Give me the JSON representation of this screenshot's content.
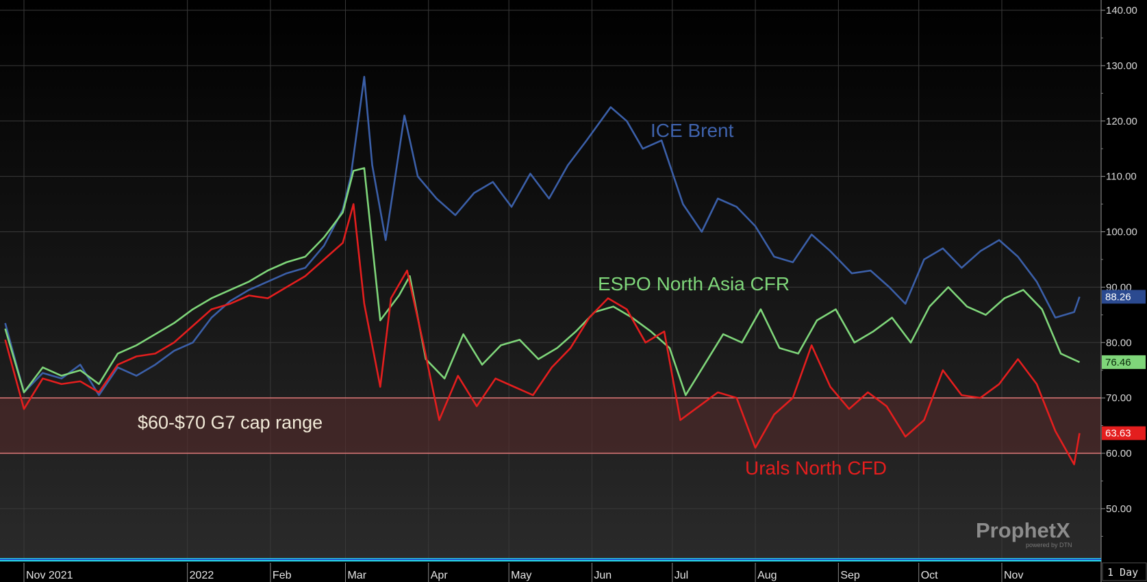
{
  "chart_data": {
    "type": "line",
    "y_range": [
      40,
      142
    ],
    "y_ticks": [
      50,
      60,
      70,
      80,
      90,
      100,
      110,
      120,
      130,
      140
    ],
    "y_tick_labels": [
      "50.00",
      "60.00",
      "70.00",
      "80.00",
      "90.00",
      "100.00",
      "110.00",
      "120.00",
      "130.00",
      "140.00"
    ],
    "x_range": [
      "2021-10-25",
      "2022-11-30"
    ],
    "x_ticks": [
      {
        "date": "2021-11-01",
        "label": "Nov 2021"
      },
      {
        "date": "2022-01-01",
        "label": "2022"
      },
      {
        "date": "2022-02-01",
        "label": "Feb"
      },
      {
        "date": "2022-03-01",
        "label": "Mar"
      },
      {
        "date": "2022-04-01",
        "label": "Apr"
      },
      {
        "date": "2022-05-01",
        "label": "May"
      },
      {
        "date": "2022-06-01",
        "label": "Jun"
      },
      {
        "date": "2022-07-01",
        "label": "Jul"
      },
      {
        "date": "2022-08-01",
        "label": "Aug"
      },
      {
        "date": "2022-09-01",
        "label": "Sep"
      },
      {
        "date": "2022-10-01",
        "label": "Oct"
      },
      {
        "date": "2022-11-01",
        "label": "Nov"
      }
    ],
    "band": {
      "low": 60,
      "high": 70,
      "label": "$60-$70 G7 cap range"
    },
    "period_label": "1 Day",
    "grid": true,
    "series": [
      {
        "name": "ICE Brent",
        "color": "#3b5fa8",
        "last_value": "88.26",
        "x": [
          "2021-10-25",
          "2021-11-01",
          "2021-11-08",
          "2021-11-15",
          "2021-11-22",
          "2021-11-29",
          "2021-12-06",
          "2021-12-13",
          "2021-12-20",
          "2021-12-27",
          "2022-01-03",
          "2022-01-10",
          "2022-01-17",
          "2022-01-24",
          "2022-01-31",
          "2022-02-07",
          "2022-02-14",
          "2022-02-21",
          "2022-02-28",
          "2022-03-03",
          "2022-03-08",
          "2022-03-11",
          "2022-03-16",
          "2022-03-23",
          "2022-03-28",
          "2022-04-04",
          "2022-04-11",
          "2022-04-18",
          "2022-04-25",
          "2022-05-02",
          "2022-05-09",
          "2022-05-16",
          "2022-05-23",
          "2022-05-30",
          "2022-06-08",
          "2022-06-14",
          "2022-06-20",
          "2022-06-27",
          "2022-07-05",
          "2022-07-12",
          "2022-07-18",
          "2022-07-25",
          "2022-08-01",
          "2022-08-08",
          "2022-08-15",
          "2022-08-22",
          "2022-08-29",
          "2022-09-06",
          "2022-09-13",
          "2022-09-20",
          "2022-09-26",
          "2022-10-03",
          "2022-10-10",
          "2022-10-17",
          "2022-10-24",
          "2022-10-31",
          "2022-11-07",
          "2022-11-14",
          "2022-11-21",
          "2022-11-28",
          "2022-11-30"
        ],
        "y": [
          83.5,
          71.0,
          74.5,
          73.5,
          76.0,
          70.5,
          75.5,
          74.0,
          76.0,
          78.5,
          80.0,
          84.5,
          87.5,
          89.5,
          91.0,
          92.5,
          93.5,
          97.5,
          104.0,
          110.0,
          128.0,
          112.0,
          98.5,
          121.0,
          110.0,
          106.0,
          103.0,
          107.0,
          109.0,
          104.5,
          110.5,
          106.0,
          112.0,
          116.5,
          122.5,
          120.0,
          115.0,
          116.5,
          105.0,
          100.0,
          106.0,
          104.5,
          101.0,
          95.5,
          94.5,
          99.5,
          96.5,
          92.5,
          93.0,
          90.0,
          87.0,
          95.0,
          97.0,
          93.5,
          96.5,
          98.5,
          95.5,
          91.0,
          84.5,
          85.5,
          88.26
        ]
      },
      {
        "name": "ESPO North Asia CFR",
        "color": "#7fd67a",
        "last_value": "76.46",
        "x": [
          "2021-10-25",
          "2021-11-01",
          "2021-11-08",
          "2021-11-15",
          "2021-11-22",
          "2021-11-29",
          "2021-12-06",
          "2021-12-13",
          "2021-12-20",
          "2021-12-27",
          "2022-01-03",
          "2022-01-10",
          "2022-01-17",
          "2022-01-24",
          "2022-01-31",
          "2022-02-07",
          "2022-02-14",
          "2022-02-21",
          "2022-02-28",
          "2022-03-04",
          "2022-03-08",
          "2022-03-14",
          "2022-03-21",
          "2022-03-25",
          "2022-03-31",
          "2022-04-07",
          "2022-04-14",
          "2022-04-21",
          "2022-04-28",
          "2022-05-05",
          "2022-05-12",
          "2022-05-19",
          "2022-05-26",
          "2022-06-02",
          "2022-06-09",
          "2022-06-16",
          "2022-06-23",
          "2022-06-30",
          "2022-07-06",
          "2022-07-13",
          "2022-07-20",
          "2022-07-27",
          "2022-08-03",
          "2022-08-10",
          "2022-08-17",
          "2022-08-24",
          "2022-08-31",
          "2022-09-07",
          "2022-09-14",
          "2022-09-21",
          "2022-09-28",
          "2022-10-05",
          "2022-10-12",
          "2022-10-19",
          "2022-10-26",
          "2022-11-02",
          "2022-11-09",
          "2022-11-16",
          "2022-11-23",
          "2022-11-30"
        ],
        "y": [
          82.5,
          71.0,
          75.5,
          74.0,
          75.0,
          72.5,
          78.0,
          79.5,
          81.5,
          83.5,
          86.0,
          88.0,
          89.5,
          91.0,
          93.0,
          94.5,
          95.5,
          99.0,
          103.5,
          111.0,
          111.5,
          84.0,
          88.5,
          92.0,
          77.0,
          73.5,
          81.5,
          76.0,
          79.5,
          80.5,
          77.0,
          79.0,
          82.0,
          85.5,
          86.5,
          84.5,
          82.0,
          79.0,
          70.5,
          76.0,
          81.5,
          80.0,
          86.0,
          79.0,
          78.0,
          84.0,
          86.0,
          80.0,
          82.0,
          84.5,
          80.0,
          86.5,
          90.0,
          86.5,
          85.0,
          88.0,
          89.5,
          86.0,
          78.0,
          76.46
        ]
      },
      {
        "name": "Urals North CFD",
        "color": "#e41e1e",
        "last_value": "63.63",
        "x": [
          "2021-10-25",
          "2021-11-01",
          "2021-11-08",
          "2021-11-15",
          "2021-11-22",
          "2021-11-29",
          "2021-12-06",
          "2021-12-13",
          "2021-12-20",
          "2021-12-27",
          "2022-01-03",
          "2022-01-10",
          "2022-01-17",
          "2022-01-24",
          "2022-01-31",
          "2022-02-07",
          "2022-02-14",
          "2022-02-21",
          "2022-02-28",
          "2022-03-04",
          "2022-03-08",
          "2022-03-14",
          "2022-03-18",
          "2022-03-24",
          "2022-03-30",
          "2022-04-05",
          "2022-04-12",
          "2022-04-19",
          "2022-04-26",
          "2022-05-03",
          "2022-05-10",
          "2022-05-17",
          "2022-05-24",
          "2022-05-31",
          "2022-06-07",
          "2022-06-14",
          "2022-06-21",
          "2022-06-28",
          "2022-07-04",
          "2022-07-11",
          "2022-07-18",
          "2022-07-25",
          "2022-08-01",
          "2022-08-08",
          "2022-08-15",
          "2022-08-22",
          "2022-08-29",
          "2022-09-05",
          "2022-09-12",
          "2022-09-19",
          "2022-09-26",
          "2022-10-03",
          "2022-10-10",
          "2022-10-17",
          "2022-10-24",
          "2022-10-31",
          "2022-11-07",
          "2022-11-14",
          "2022-11-21",
          "2022-11-28",
          "2022-11-30"
        ],
        "y": [
          80.5,
          68.0,
          73.5,
          72.5,
          73.0,
          71.0,
          76.0,
          77.5,
          78.0,
          80.0,
          83.0,
          86.0,
          87.0,
          88.5,
          88.0,
          90.0,
          92.0,
          95.0,
          98.0,
          105.0,
          87.0,
          72.0,
          88.0,
          93.0,
          80.0,
          66.0,
          74.0,
          68.5,
          73.5,
          72.0,
          70.5,
          75.5,
          79.0,
          84.5,
          88.0,
          86.0,
          80.0,
          82.0,
          66.0,
          68.5,
          71.0,
          70.0,
          61.0,
          67.0,
          70.0,
          79.5,
          72.0,
          68.0,
          71.0,
          68.5,
          63.0,
          66.0,
          75.0,
          70.5,
          70.0,
          72.5,
          77.0,
          72.5,
          64.0,
          58.0,
          63.63
        ]
      }
    ],
    "series_labels": [
      "ICE Brent",
      "ESPO North Asia CFR",
      "Urals North CFD"
    ],
    "watermark": {
      "brand": "ProphetX",
      "sub": "powered by DTN"
    }
  }
}
